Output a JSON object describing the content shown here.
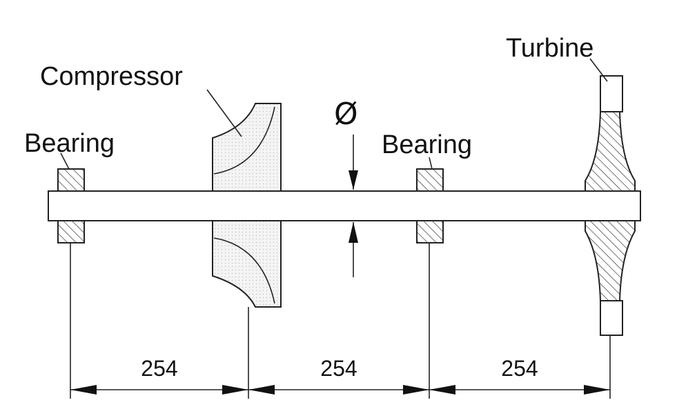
{
  "labels": {
    "compressor": "Compressor",
    "turbine": "Turbine",
    "bearing_left": "Bearing",
    "bearing_right": "Bearing",
    "diameter_symbol": "Ø"
  },
  "dimensions": [
    {
      "value": "254"
    },
    {
      "value": "254"
    },
    {
      "value": "254"
    }
  ],
  "colors": {
    "line": "#222222",
    "hatch": "#333333",
    "background": "#ffffff"
  }
}
